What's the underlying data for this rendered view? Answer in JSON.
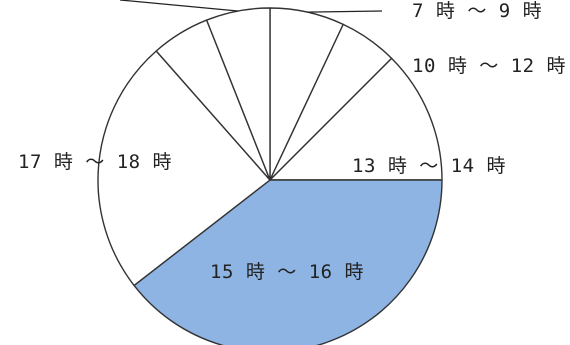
{
  "chart_data": {
    "type": "pie",
    "start_angle_deg": 90,
    "direction": "clockwise",
    "slices": [
      {
        "label": "7 時 ～ 9 時",
        "value": 7.0,
        "color": "#ffffff"
      },
      {
        "label": "10 時 ～ 12 時",
        "value": 5.5,
        "color": "#ffffff"
      },
      {
        "label": "13 時 ～ 14 時",
        "value": 12.5,
        "color": "#ffffff"
      },
      {
        "label": "15 時 ～ 16 時",
        "value": 39.5,
        "color": "#8db4e2"
      },
      {
        "label": "17 時 ～ 18 時",
        "value": 24.0,
        "color": "#ffffff"
      },
      {
        "label": "",
        "value": 5.5,
        "color": "#ffffff"
      },
      {
        "label": "",
        "value": 6.0,
        "color": "#ffffff"
      }
    ],
    "colors": {
      "outline": "#333333",
      "highlight": "#8db4e2"
    }
  }
}
